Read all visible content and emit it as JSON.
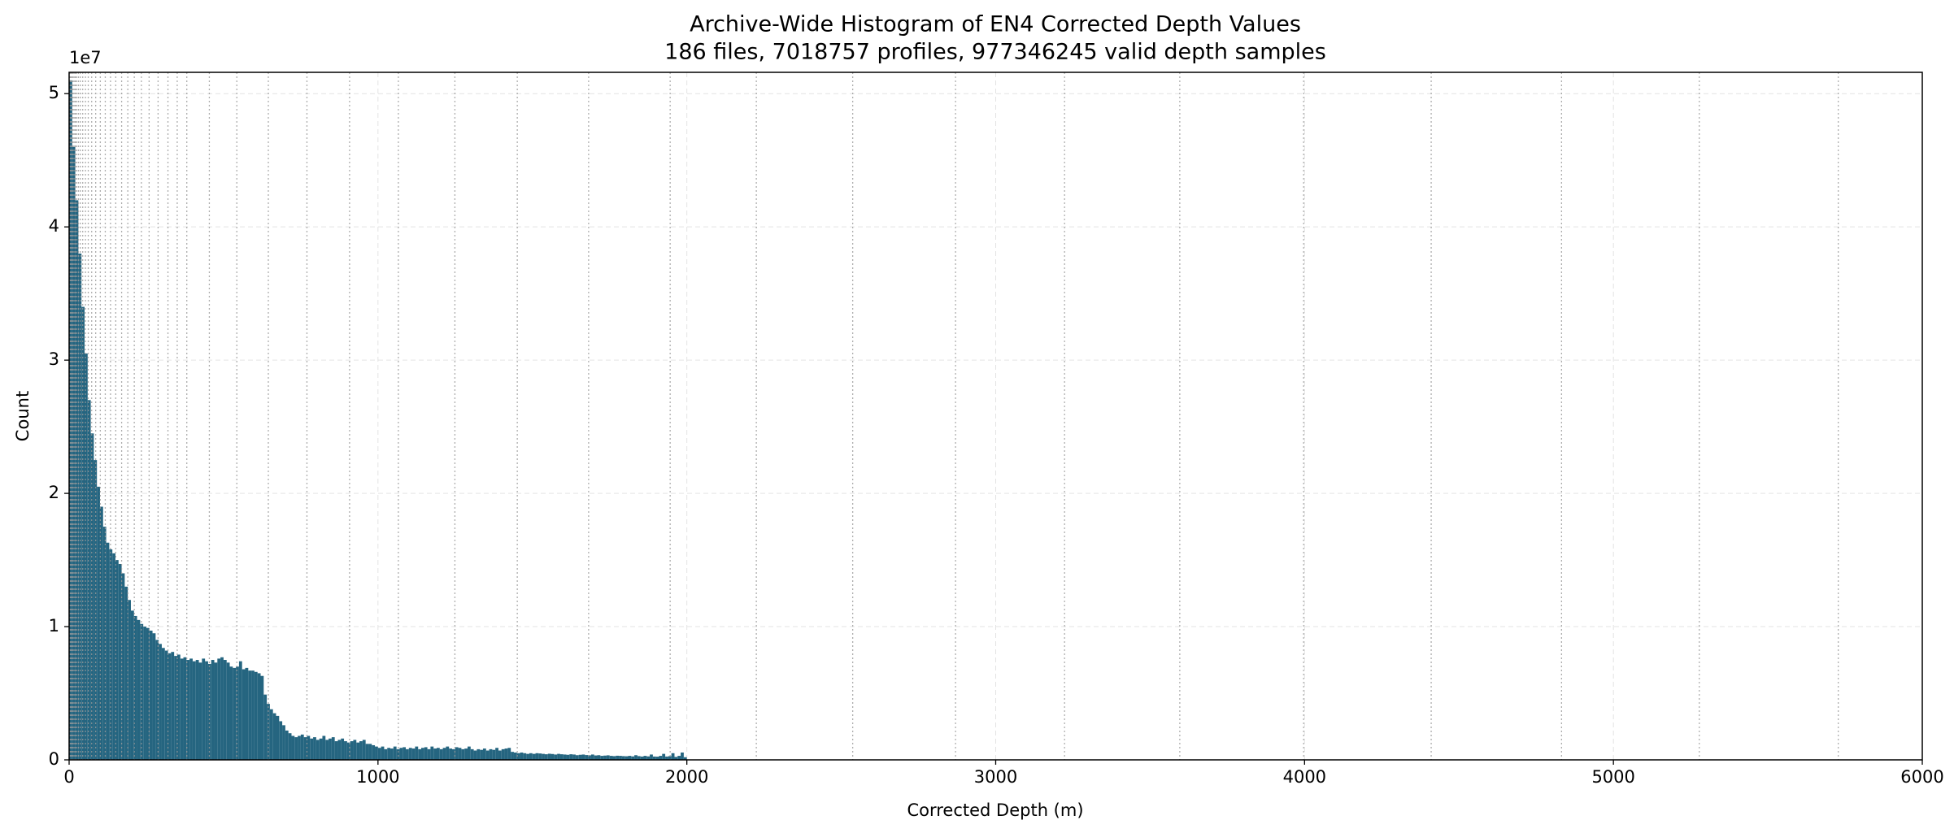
{
  "chart_data": {
    "type": "histogram",
    "title": "Archive-Wide Histogram of EN4 Corrected Depth Values",
    "subtitle": "186 files, 7018757 profiles, 977346245 valid depth samples",
    "xlabel": "Corrected Depth (m)",
    "ylabel": "Count",
    "y_offset_label": "1e7",
    "color": "#256580",
    "grid": true,
    "xlim": [
      0,
      6000
    ],
    "xticks": [
      0,
      1000,
      2000,
      3000,
      4000,
      5000,
      6000
    ],
    "ylim": [
      0,
      51600000
    ],
    "yticks": [
      0,
      {
        "value": 10000000,
        "label": "1"
      },
      {
        "value": 20000000,
        "label": "2"
      },
      {
        "value": 30000000,
        "label": "3"
      },
      {
        "value": 40000000,
        "label": "4"
      },
      {
        "value": 50000000,
        "label": "5"
      }
    ],
    "reference_lines": [
      2,
      5,
      8,
      12,
      16,
      20,
      24,
      30,
      36,
      44,
      53,
      62,
      73,
      86,
      101,
      117,
      134,
      151,
      170,
      190,
      211,
      234,
      259,
      288,
      320,
      350,
      381,
      454,
      543,
      645,
      770,
      908,
      1066,
      1249,
      1451,
      1682,
      1946,
      2225,
      2537,
      2870,
      3223,
      3596,
      3997,
      4410,
      4832,
      5278,
      5728
    ],
    "bins": [
      0,
      10,
      20,
      30,
      40,
      50,
      60,
      70,
      80,
      90,
      100,
      110,
      120,
      130,
      140,
      150,
      160,
      170,
      180,
      190,
      200,
      210,
      220,
      230,
      240,
      250,
      260,
      270,
      280,
      290,
      300,
      310,
      320,
      330,
      340,
      350,
      360,
      370,
      380,
      390,
      400,
      410,
      420,
      430,
      440,
      450,
      460,
      470,
      480,
      490,
      500,
      510,
      520,
      530,
      540,
      550,
      560,
      570,
      580,
      590,
      600,
      610,
      620,
      630,
      640,
      650,
      660,
      670,
      680,
      690,
      700,
      710,
      720,
      730,
      740,
      750,
      760,
      770,
      780,
      790,
      800,
      810,
      820,
      830,
      840,
      850,
      860,
      870,
      880,
      890,
      900,
      910,
      920,
      930,
      940,
      950,
      960,
      970,
      980,
      990,
      1000,
      1010,
      1020,
      1030,
      1040,
      1050,
      1060,
      1070,
      1080,
      1090,
      1100,
      1110,
      1120,
      1130,
      1140,
      1150,
      1160,
      1170,
      1180,
      1190,
      1200,
      1210,
      1220,
      1230,
      1240,
      1250,
      1260,
      1270,
      1280,
      1290,
      1300,
      1310,
      1320,
      1330,
      1340,
      1350,
      1360,
      1370,
      1380,
      1390,
      1400,
      1410,
      1420,
      1430,
      1440,
      1450,
      1460,
      1470,
      1480,
      1490,
      1500,
      1510,
      1520,
      1530,
      1540,
      1550,
      1560,
      1570,
      1580,
      1590,
      1600,
      1610,
      1620,
      1630,
      1640,
      1650,
      1660,
      1670,
      1680,
      1690,
      1700,
      1710,
      1720,
      1730,
      1740,
      1750,
      1760,
      1770,
      1780,
      1790,
      1800,
      1810,
      1820,
      1830,
      1840,
      1850,
      1860,
      1870,
      1880,
      1890,
      1900,
      1910,
      1920,
      1930,
      1940,
      1950,
      1960,
      1970,
      1980,
      1990,
      2000
    ],
    "values": [
      51000000,
      46000000,
      42000000,
      38000000,
      34000000,
      30500000,
      27000000,
      24500000,
      22500000,
      20500000,
      19000000,
      17500000,
      16300000,
      15800000,
      15500000,
      15000000,
      14700000,
      14000000,
      13000000,
      12000000,
      11200000,
      10800000,
      10500000,
      10200000,
      10000000,
      9900000,
      9700000,
      9500000,
      9000000,
      8700000,
      8400000,
      8200000,
      8000000,
      8100000,
      7800000,
      7900000,
      7600000,
      7700000,
      7500000,
      7600000,
      7400000,
      7500000,
      7300000,
      7600000,
      7400000,
      7200000,
      7500000,
      7300000,
      7600000,
      7700000,
      7500000,
      7300000,
      7000000,
      6900000,
      7000000,
      7400000,
      6800000,
      6900000,
      6700000,
      6700000,
      6600000,
      6500000,
      6300000,
      4900000,
      4200000,
      3800000,
      3500000,
      3300000,
      2900000,
      2600000,
      2200000,
      2000000,
      1800000,
      1700000,
      1800000,
      1900000,
      1700000,
      1800000,
      1600000,
      1700000,
      1500000,
      1600000,
      1800000,
      1500000,
      1600000,
      1700000,
      1400000,
      1500000,
      1600000,
      1400000,
      1300000,
      1400000,
      1500000,
      1300000,
      1400000,
      1500000,
      1200000,
      1200000,
      1100000,
      1000000,
      900000,
      1000000,
      800000,
      900000,
      850000,
      1000000,
      800000,
      900000,
      950000,
      800000,
      900000,
      850000,
      1000000,
      800000,
      900000,
      950000,
      800000,
      1000000,
      850000,
      900000,
      800000,
      900000,
      1000000,
      850000,
      800000,
      950000,
      900000,
      800000,
      850000,
      1000000,
      800000,
      700000,
      800000,
      750000,
      850000,
      700000,
      800000,
      750000,
      900000,
      700000,
      800000,
      850000,
      900000,
      600000,
      550000,
      500000,
      550000,
      500000,
      450000,
      500000,
      450000,
      500000,
      480000,
      450000,
      420000,
      460000,
      440000,
      400000,
      450000,
      420000,
      400000,
      380000,
      420000,
      400000,
      350000,
      380000,
      400000,
      360000,
      340000,
      400000,
      330000,
      350000,
      300000,
      320000,
      340000,
      300000,
      280000,
      310000,
      300000,
      280000,
      270000,
      300000,
      260000,
      350000,
      280000,
      250000,
      300000,
      260000,
      400000,
      250000,
      240000,
      300000,
      450000,
      250000,
      280000,
      500000,
      220000,
      300000,
      550000,
      200000
    ]
  }
}
